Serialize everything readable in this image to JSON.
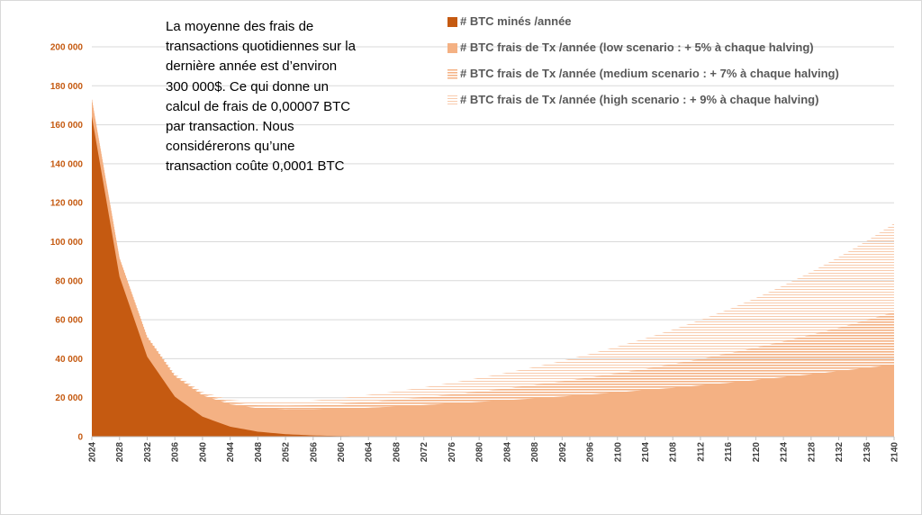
{
  "chart_data": {
    "type": "area",
    "annotation": [
      "La moyenne des frais de",
      "transactions quotidiennes sur la",
      "dernière année est d’environ",
      "300 000$. Ce qui donne un",
      "calcul de frais de 0,00007 BTC",
      "par transaction. Nous",
      "considérerons qu’une",
      "transaction coûte 0,0001 BTC"
    ],
    "x_range": [
      2024,
      2140
    ],
    "x_tick_step": 4,
    "ylim": [
      0,
      200000
    ],
    "y_ticks": [
      0,
      20000,
      40000,
      60000,
      80000,
      100000,
      120000,
      140000,
      160000,
      180000,
      200000
    ],
    "y_tick_labels": [
      "0",
      "20 000",
      "40 000",
      "60 000",
      "80 000",
      "100 000",
      "120 000",
      "140 000",
      "160 000",
      "180 000",
      "200 000"
    ],
    "grid": true,
    "legend_position": "top-right",
    "series": [
      {
        "name": "# BTC minés /année",
        "color": "#c55a11",
        "style": "solid",
        "points": [
          [
            2024,
            164250
          ],
          [
            2028,
            82125
          ],
          [
            2032,
            41062
          ],
          [
            2036,
            20531
          ],
          [
            2040,
            10266
          ],
          [
            2044,
            5133
          ],
          [
            2048,
            2566
          ],
          [
            2052,
            1283
          ],
          [
            2056,
            642
          ],
          [
            2060,
            321
          ],
          [
            2064,
            160
          ],
          [
            2068,
            80
          ],
          [
            2072,
            40
          ],
          [
            2140,
            0
          ]
        ]
      },
      {
        "name": "# BTC frais de Tx /année (low scenario : + 5% à chaque halving)",
        "color": "#f4b183",
        "style": "solid",
        "points": [
          [
            2024,
            9000
          ],
          [
            2028,
            9450
          ],
          [
            2032,
            9900
          ],
          [
            2036,
            10400
          ],
          [
            2040,
            10900
          ],
          [
            2044,
            11500
          ],
          [
            2048,
            12000
          ],
          [
            2052,
            12600
          ],
          [
            2056,
            13300
          ],
          [
            2060,
            14000
          ],
          [
            2064,
            14700
          ],
          [
            2068,
            15400
          ],
          [
            2072,
            16200
          ],
          [
            2076,
            17000
          ],
          [
            2080,
            17800
          ],
          [
            2084,
            18700
          ],
          [
            2088,
            19600
          ],
          [
            2092,
            20600
          ],
          [
            2096,
            21600
          ],
          [
            2100,
            22700
          ],
          [
            2104,
            23900
          ],
          [
            2108,
            25000
          ],
          [
            2112,
            26300
          ],
          [
            2116,
            27600
          ],
          [
            2120,
            29000
          ],
          [
            2124,
            30500
          ],
          [
            2128,
            32000
          ],
          [
            2132,
            33600
          ],
          [
            2136,
            35300
          ],
          [
            2140,
            37000
          ]
        ]
      },
      {
        "name": "# BTC frais de Tx /année (medium scenario : + 7% à chaque halving)",
        "color": "#f4b183",
        "style": "dense-stripes",
        "points": [
          [
            2024,
            9000
          ],
          [
            2028,
            9600
          ],
          [
            2032,
            10300
          ],
          [
            2036,
            11000
          ],
          [
            2040,
            11800
          ],
          [
            2044,
            12600
          ],
          [
            2048,
            13500
          ],
          [
            2052,
            14500
          ],
          [
            2056,
            15500
          ],
          [
            2060,
            16600
          ],
          [
            2064,
            17700
          ],
          [
            2068,
            19000
          ],
          [
            2072,
            20300
          ],
          [
            2076,
            21700
          ],
          [
            2080,
            23200
          ],
          [
            2084,
            24800
          ],
          [
            2088,
            26600
          ],
          [
            2092,
            28400
          ],
          [
            2096,
            30400
          ],
          [
            2100,
            32600
          ],
          [
            2104,
            34800
          ],
          [
            2108,
            37300
          ],
          [
            2112,
            39900
          ],
          [
            2116,
            42700
          ],
          [
            2120,
            45700
          ],
          [
            2124,
            48900
          ],
          [
            2128,
            52300
          ],
          [
            2132,
            55900
          ],
          [
            2136,
            59800
          ],
          [
            2140,
            64000
          ]
        ]
      },
      {
        "name": "# BTC frais de Tx /année (high scenario : + 9% à chaque halving)",
        "color": "#f8cbad",
        "style": "sparse-stripes",
        "points": [
          [
            2024,
            9000
          ],
          [
            2028,
            9800
          ],
          [
            2032,
            10700
          ],
          [
            2036,
            11700
          ],
          [
            2040,
            12700
          ],
          [
            2044,
            13800
          ],
          [
            2048,
            15100
          ],
          [
            2052,
            16500
          ],
          [
            2056,
            17900
          ],
          [
            2060,
            19500
          ],
          [
            2064,
            21300
          ],
          [
            2068,
            23200
          ],
          [
            2072,
            25300
          ],
          [
            2076,
            27600
          ],
          [
            2080,
            30100
          ],
          [
            2084,
            32800
          ],
          [
            2088,
            35700
          ],
          [
            2092,
            38900
          ],
          [
            2096,
            42400
          ],
          [
            2100,
            46200
          ],
          [
            2104,
            50400
          ],
          [
            2108,
            54900
          ],
          [
            2112,
            59900
          ],
          [
            2116,
            65200
          ],
          [
            2120,
            71100
          ],
          [
            2124,
            77500
          ],
          [
            2128,
            84500
          ],
          [
            2132,
            92100
          ],
          [
            2136,
            100300
          ],
          [
            2140,
            109400
          ]
        ]
      }
    ]
  }
}
